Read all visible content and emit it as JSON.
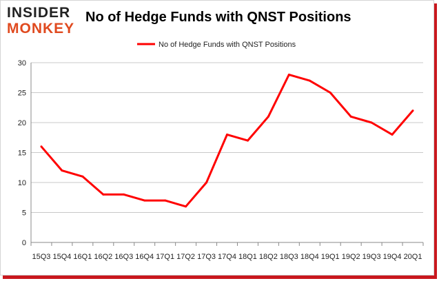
{
  "brand": {
    "line1": "INSIDER",
    "line2": "MONKEY"
  },
  "colors": {
    "series": "#ff0000",
    "axis": "#888888",
    "grid": "#c8c8c8",
    "frame_shadow": "#c9181e",
    "logo_accent": "#e04a1f"
  },
  "chart_data": {
    "type": "line",
    "title": "No of Hedge Funds with QNST Positions",
    "xlabel": "",
    "ylabel": "",
    "categories": [
      "15Q3",
      "15Q4",
      "16Q1",
      "16Q2",
      "16Q3",
      "16Q4",
      "17Q1",
      "17Q2",
      "17Q3",
      "17Q4",
      "18Q1",
      "18Q2",
      "18Q3",
      "18Q4",
      "19Q1",
      "19Q2",
      "19Q3",
      "19Q4",
      "20Q1"
    ],
    "series": [
      {
        "name": "No of Hedge Funds with QNST Positions",
        "values": [
          16,
          12,
          11,
          8,
          8,
          7,
          7,
          6,
          10,
          18,
          17,
          21,
          28,
          27,
          25,
          21,
          20,
          18,
          22
        ]
      }
    ],
    "ylim": [
      0,
      30
    ],
    "yticks": [
      0,
      5,
      10,
      15,
      20,
      25,
      30
    ],
    "grid": "horizontal",
    "legend": "top-center"
  }
}
